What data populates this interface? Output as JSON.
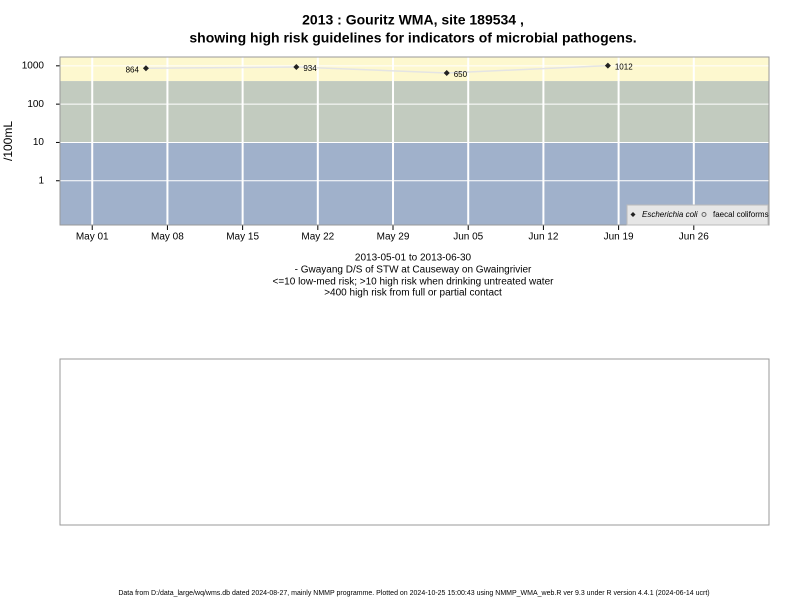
{
  "chart_data": {
    "type": "line",
    "title": [
      "2013 : Gouritz WMA, site 189534 ,",
      "showing high risk guidelines for indicators of microbial pathogens."
    ],
    "y_label": "/100mL",
    "notes": [
      "2013-05-01 to 2013-06-30",
      "- Gwayang D/S of STW at Causeway on Gwaingrivier",
      "<=10 low-med risk; >10 high risk when drinking untreated water",
      ">400 high risk from full or partial contact"
    ],
    "footer": "Data from D:/data_large/wq/wms.db dated 2024-08-27, mainly NMMP programme. Plotted on 2024-10-25 15:00:43 using NMMP_WMA_web.R ver 9.3 under R version 4.4.1 (2024-06-14 ucrt)",
    "x": [
      "2013-05-06",
      "2013-05-20",
      "2013-06-03",
      "2013-06-18"
    ],
    "series": [
      {
        "name": "Escherichia coli",
        "color": "#222222",
        "values": [
          864,
          934,
          650,
          1012
        ]
      },
      {
        "name": "faecal coliforms",
        "color": "#666666",
        "values": [
          null,
          null,
          null,
          null
        ]
      }
    ],
    "xlim": [
      "2013-04-28",
      "2013-07-03"
    ],
    "xticks": [
      {
        "value": "2013-05-01",
        "label": "May 01"
      },
      {
        "value": "2013-05-08",
        "label": "May 08"
      },
      {
        "value": "2013-05-15",
        "label": "May 15"
      },
      {
        "value": "2013-05-22",
        "label": "May 22"
      },
      {
        "value": "2013-05-29",
        "label": "May 29"
      },
      {
        "value": "2013-06-05",
        "label": "Jun 05"
      },
      {
        "value": "2013-06-12",
        "label": "Jun 12"
      },
      {
        "value": "2013-06-19",
        "label": "Jun 19"
      },
      {
        "value": "2013-06-26",
        "label": "Jun 26"
      }
    ],
    "ylim": [
      0.07,
      1700
    ],
    "yticks": [
      1,
      10,
      100,
      1000
    ],
    "log_y": true,
    "grid": true,
    "legend": "lower right",
    "bands": [
      {
        "min": 400,
        "color": "#fdf8cf"
      },
      {
        "min": 10,
        "max": 400,
        "color": "#c2cbbf"
      },
      {
        "max": 10,
        "color": "#a0b1cb"
      }
    ]
  }
}
